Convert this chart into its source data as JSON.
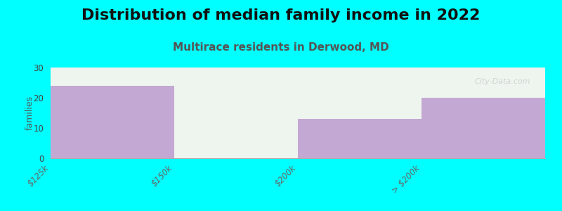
{
  "title": "Distribution of median family income in 2022",
  "subtitle": "Multirace residents in Derwood, MD",
  "categories": [
    "$125k",
    "$150k",
    "$200k",
    "> $200k"
  ],
  "values": [
    24,
    0,
    13,
    20
  ],
  "bar_color": "#c4a8d4",
  "plot_bg_color": "#eef5ee",
  "background_color": "#00ffff",
  "ylabel": "families",
  "ylim": [
    0,
    30
  ],
  "yticks": [
    0,
    10,
    20,
    30
  ],
  "title_fontsize": 16,
  "subtitle_fontsize": 11,
  "title_color": "#111111",
  "subtitle_color": "#555555",
  "tick_label_color": "#666666",
  "watermark": "City-Data.com"
}
